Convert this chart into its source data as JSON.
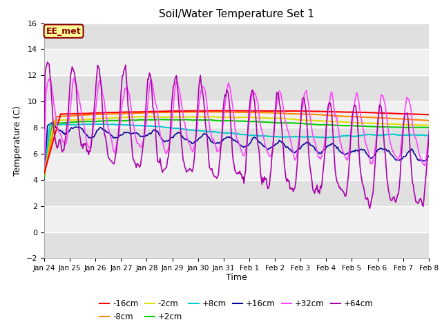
{
  "title": "Soil/Water Temperature Set 1",
  "ylabel": "Temperature (C)",
  "xlabel": "Time",
  "ylim": [
    -2,
    16
  ],
  "yticks": [
    -2,
    0,
    2,
    4,
    6,
    8,
    10,
    12,
    14,
    16
  ],
  "annotation_text": "EE_met",
  "annotation_bg": "#ffff99",
  "annotation_border": "#8b0000",
  "colors": {
    "-16cm": "#ff0000",
    "-8cm": "#ff8800",
    "-2cm": "#dddd00",
    "+2cm": "#00cc00",
    "+8cm": "#00cccc",
    "+16cm": "#000099",
    "+32cm": "#ff44ff",
    "+64cm": "#aa00aa"
  },
  "n_points": 500,
  "background_color": "#ffffff",
  "band_dark": "#e0e0e0",
  "band_light": "#f0f0f0"
}
